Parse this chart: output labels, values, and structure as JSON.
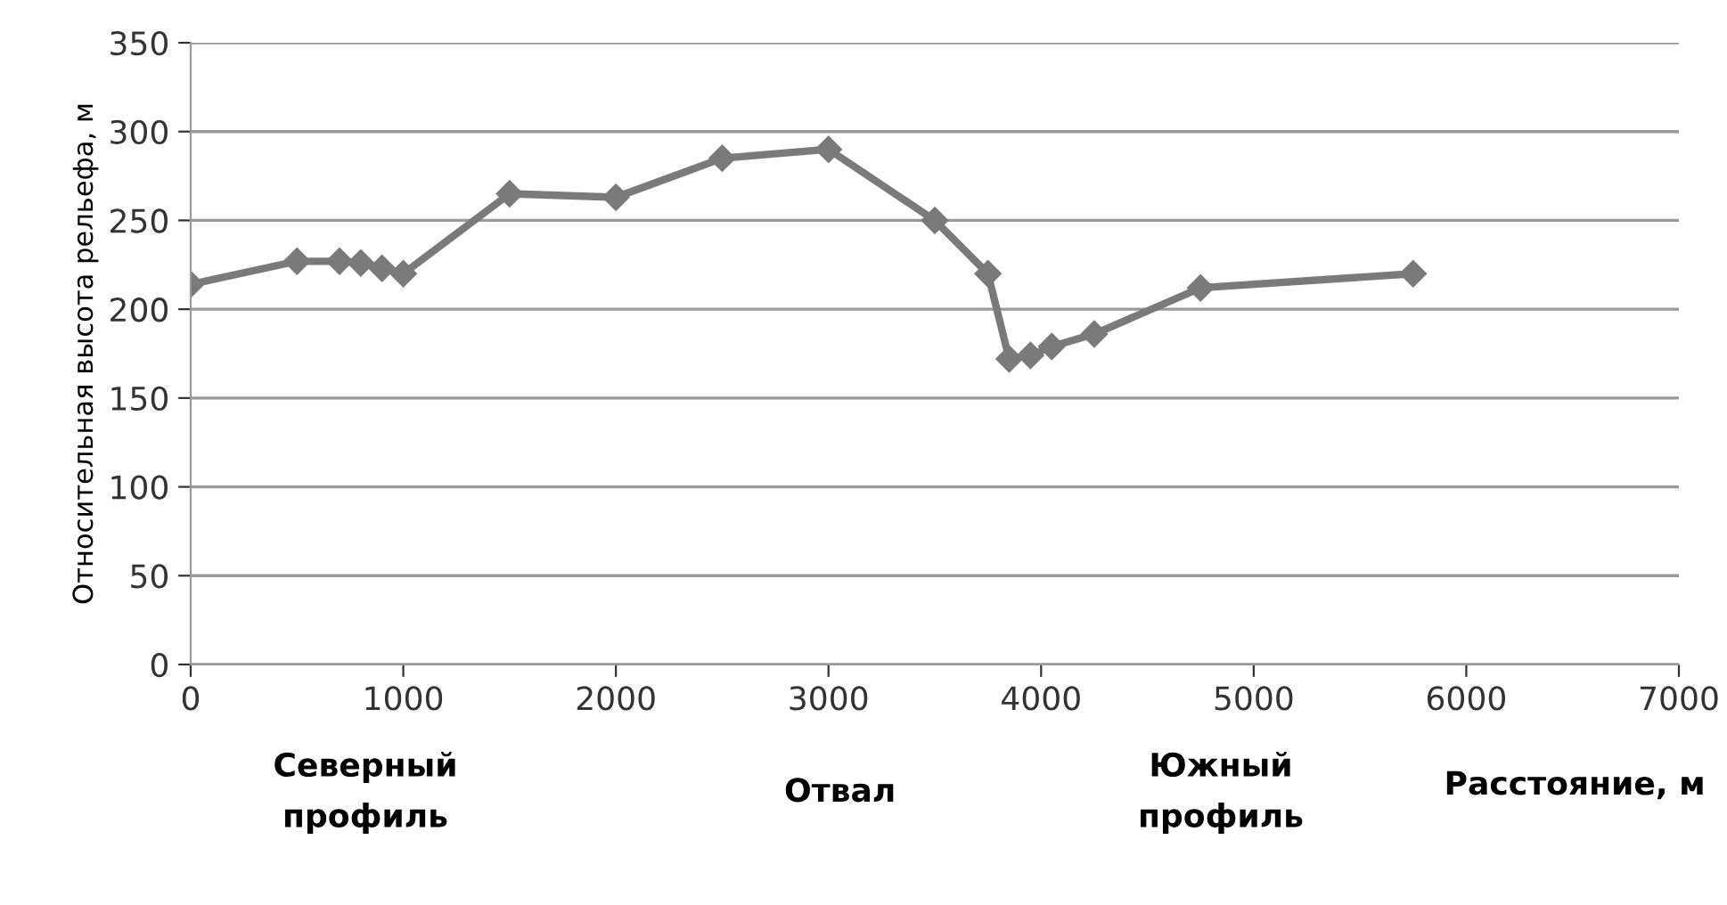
{
  "chart_data": {
    "type": "line",
    "ylabel": "Относительная высота рельефа, м",
    "xlabel": "Расстояние, м",
    "x": [
      0,
      500,
      700,
      800,
      900,
      1000,
      1500,
      2000,
      2500,
      3000,
      3500,
      3750,
      3850,
      3950,
      4050,
      4250,
      4750,
      5750
    ],
    "series": [
      {
        "color": "#7a7a7a",
        "values": [
          214,
          227,
          227,
          226,
          223,
          220,
          265,
          263,
          285,
          290,
          250,
          220,
          172,
          174,
          179,
          186,
          212,
          220
        ]
      }
    ],
    "xlim": [
      0,
      7000
    ],
    "xticks": [
      0,
      1000,
      2000,
      3000,
      4000,
      5000,
      6000,
      7000
    ],
    "ylim": [
      0,
      350
    ],
    "yticks": [
      0,
      50,
      100,
      150,
      200,
      250,
      300,
      350
    ],
    "grid": "y",
    "marker": "diamond",
    "line_style": "solid",
    "legend": false,
    "annotations": [
      "Северный\nпрофиль",
      "Отвал",
      "Южный\nпрофиль"
    ]
  }
}
